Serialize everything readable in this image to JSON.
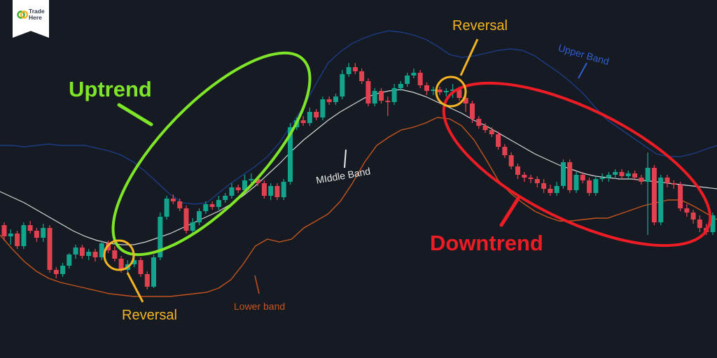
{
  "brand": {
    "line1": "Trade",
    "line2": "Here",
    "logo_icon": "double-circle-logo-icon",
    "colors": {
      "green": "#3aa935",
      "yellow": "#f2b51f"
    }
  },
  "colors": {
    "background": "#161a23",
    "bull": "#12a48c",
    "bear": "#e2414f",
    "upper_band": "#1d3c86",
    "middle_band": "#d7d7d7",
    "lower_band": "#c4551f",
    "uptrend": "#7ee528",
    "downtrend": "#ee1c25",
    "reversal": "#f4b424"
  },
  "annotations": {
    "uptrend": "Uptrend",
    "downtrend": "Downtrend",
    "reversal_low": "Reversal",
    "reversal_high": "Reversal",
    "upper_band": "Upper Band",
    "middle_band": "MIddle Band",
    "lower_band": "Lower band"
  },
  "chart_data": {
    "type": "candlestick",
    "grid": false,
    "axes_visible": false,
    "candles": [
      [
        322,
        338,
        318,
        344
      ],
      [
        338,
        334,
        328,
        350
      ],
      [
        334,
        352,
        330,
        356
      ],
      [
        352,
        322,
        318,
        356
      ],
      [
        322,
        330,
        316,
        334
      ],
      [
        330,
        340,
        326,
        346
      ],
      [
        340,
        326,
        320,
        346
      ],
      [
        326,
        386,
        322,
        390
      ],
      [
        386,
        392,
        382,
        398
      ],
      [
        392,
        380,
        376,
        396
      ],
      [
        380,
        364,
        362,
        384
      ],
      [
        364,
        354,
        350,
        370
      ],
      [
        354,
        366,
        350,
        370
      ],
      [
        366,
        360,
        356,
        372
      ],
      [
        360,
        368,
        356,
        374
      ],
      [
        368,
        348,
        344,
        372
      ],
      [
        348,
        358,
        344,
        362
      ],
      [
        358,
        370,
        352,
        374
      ],
      [
        370,
        386,
        366,
        390
      ],
      [
        386,
        378,
        372,
        390
      ],
      [
        378,
        372,
        362,
        382
      ],
      [
        372,
        392,
        368,
        396
      ],
      [
        392,
        410,
        388,
        414
      ],
      [
        410,
        368,
        364,
        412
      ],
      [
        368,
        310,
        304,
        372
      ],
      [
        310,
        284,
        280,
        314
      ],
      [
        284,
        288,
        278,
        292
      ],
      [
        288,
        298,
        284,
        302
      ],
      [
        298,
        330,
        294,
        334
      ],
      [
        330,
        318,
        312,
        336
      ],
      [
        318,
        302,
        298,
        322
      ],
      [
        302,
        292,
        288,
        306
      ],
      [
        292,
        296,
        288,
        300
      ],
      [
        296,
        286,
        280,
        300
      ],
      [
        286,
        280,
        276,
        290
      ],
      [
        280,
        268,
        262,
        284
      ],
      [
        268,
        272,
        264,
        276
      ],
      [
        272,
        258,
        250,
        276
      ],
      [
        258,
        256,
        248,
        262
      ],
      [
        256,
        262,
        252,
        266
      ],
      [
        262,
        280,
        258,
        284
      ],
      [
        280,
        266,
        262,
        286
      ],
      [
        266,
        282,
        262,
        286
      ],
      [
        282,
        260,
        256,
        286
      ],
      [
        260,
        182,
        176,
        264
      ],
      [
        182,
        172,
        168,
        186
      ],
      [
        172,
        176,
        166,
        180
      ],
      [
        176,
        160,
        154,
        180
      ],
      [
        160,
        168,
        156,
        172
      ],
      [
        168,
        142,
        138,
        172
      ],
      [
        142,
        146,
        138,
        150
      ],
      [
        146,
        138,
        134,
        150
      ],
      [
        138,
        106,
        100,
        142
      ],
      [
        106,
        96,
        90,
        110
      ],
      [
        96,
        102,
        90,
        106
      ],
      [
        102,
        116,
        98,
        120
      ],
      [
        116,
        148,
        112,
        152
      ],
      [
        148,
        130,
        126,
        152
      ],
      [
        130,
        144,
        126,
        148
      ],
      [
        144,
        146,
        138,
        166
      ],
      [
        146,
        126,
        120,
        150
      ],
      [
        126,
        120,
        116,
        130
      ],
      [
        120,
        108,
        104,
        124
      ],
      [
        108,
        104,
        98,
        112
      ],
      [
        104,
        122,
        100,
        126
      ],
      [
        122,
        130,
        118,
        136
      ],
      [
        130,
        128,
        124,
        136
      ],
      [
        128,
        132,
        124,
        136
      ],
      [
        132,
        130,
        126,
        138
      ],
      [
        130,
        128,
        120,
        140
      ],
      [
        128,
        140,
        124,
        144
      ],
      [
        140,
        148,
        132,
        160
      ],
      [
        148,
        170,
        144,
        176
      ],
      [
        170,
        180,
        166,
        184
      ],
      [
        180,
        186,
        176,
        190
      ],
      [
        186,
        192,
        182,
        196
      ],
      [
        192,
        210,
        188,
        214
      ],
      [
        210,
        222,
        206,
        226
      ],
      [
        222,
        238,
        218,
        242
      ],
      [
        238,
        250,
        234,
        256
      ],
      [
        250,
        254,
        246,
        260
      ],
      [
        254,
        256,
        250,
        262
      ],
      [
        256,
        262,
        252,
        268
      ],
      [
        262,
        270,
        256,
        276
      ],
      [
        270,
        276,
        264,
        280
      ],
      [
        276,
        266,
        260,
        280
      ],
      [
        266,
        232,
        228,
        270
      ],
      [
        232,
        272,
        228,
        276
      ],
      [
        272,
        250,
        246,
        276
      ],
      [
        250,
        258,
        246,
        262
      ],
      [
        258,
        276,
        254,
        280
      ],
      [
        276,
        256,
        252,
        280
      ],
      [
        256,
        254,
        248,
        260
      ],
      [
        254,
        250,
        246,
        260
      ],
      [
        250,
        246,
        242,
        256
      ],
      [
        246,
        252,
        242,
        256
      ],
      [
        252,
        248,
        244,
        256
      ],
      [
        248,
        254,
        244,
        258
      ],
      [
        254,
        260,
        250,
        264
      ],
      [
        260,
        240,
        218,
        336
      ],
      [
        240,
        318,
        236,
        322
      ],
      [
        318,
        254,
        250,
        322
      ],
      [
        254,
        262,
        250,
        268
      ],
      [
        262,
        264,
        258,
        270
      ],
      [
        264,
        298,
        260,
        302
      ],
      [
        298,
        304,
        292,
        310
      ],
      [
        304,
        314,
        300,
        320
      ],
      [
        314,
        326,
        308,
        332
      ],
      [
        326,
        332,
        320,
        336
      ],
      [
        332,
        308,
        304,
        336
      ]
    ],
    "upper_band": [
      208,
      208,
      210,
      208,
      206,
      208,
      208,
      208,
      212,
      216,
      222,
      232,
      246,
      262,
      278,
      290,
      292,
      290,
      276,
      262,
      250,
      238,
      224,
      204,
      178,
      152,
      120,
      90,
      74,
      62,
      54,
      48,
      44,
      46,
      50,
      56,
      66,
      78,
      82,
      80,
      76,
      72,
      70,
      72,
      80,
      92,
      104,
      118,
      134,
      154,
      172,
      184,
      196,
      208,
      220,
      224,
      224,
      220,
      214,
      208
    ],
    "middle_band": [
      274,
      282,
      290,
      300,
      310,
      320,
      330,
      338,
      344,
      348,
      350,
      350,
      346,
      340,
      334,
      326,
      318,
      310,
      302,
      292,
      280,
      266,
      250,
      234,
      216,
      200,
      186,
      172,
      160,
      150,
      140,
      134,
      130,
      128,
      132,
      138,
      146,
      154,
      162,
      172,
      180,
      190,
      200,
      210,
      220,
      228,
      236,
      242,
      248,
      252,
      254,
      256,
      256,
      258,
      260,
      262,
      264,
      266,
      268,
      270
    ],
    "lower_band": [
      336,
      356,
      374,
      388,
      398,
      404,
      408,
      412,
      416,
      420,
      422,
      424,
      424,
      424,
      424,
      422,
      420,
      418,
      412,
      400,
      378,
      352,
      342,
      346,
      342,
      326,
      316,
      306,
      288,
      262,
      232,
      208,
      196,
      186,
      182,
      176,
      168,
      170,
      180,
      200,
      228,
      258,
      276,
      290,
      302,
      310,
      316,
      316,
      314,
      312,
      312,
      306,
      300,
      294,
      290,
      286,
      286,
      294,
      304,
      314
    ]
  }
}
